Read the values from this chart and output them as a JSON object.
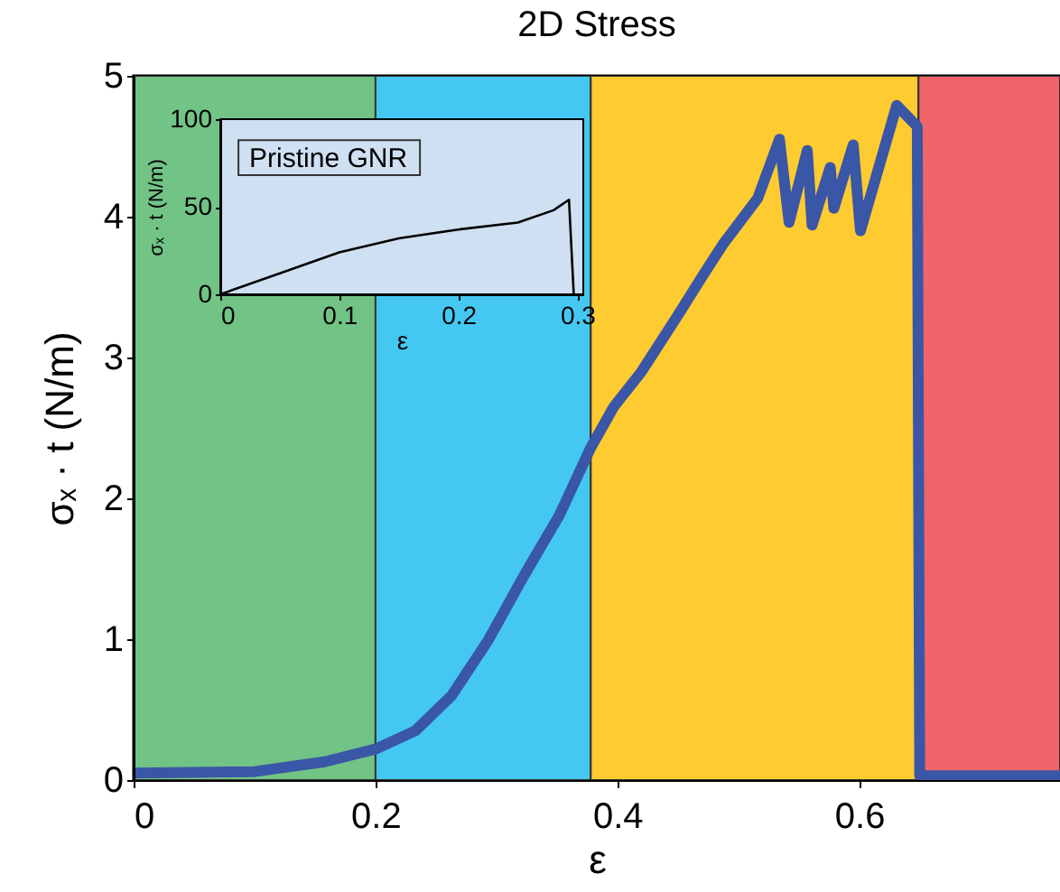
{
  "chart_data": [
    {
      "type": "line",
      "title": "2D Stress",
      "xlabel": "ε",
      "ylabel": "σₓ · t (N/m)",
      "xlim": [
        0,
        0.766
      ],
      "ylim": [
        0,
        5
      ],
      "xticks": [
        0,
        0.2,
        0.4,
        0.6
      ],
      "yticks": [
        0,
        1,
        2,
        3,
        4,
        5
      ],
      "grid": false,
      "bands": [
        {
          "axis": "x",
          "from": 0,
          "to": 0.2,
          "color": "#72c386"
        },
        {
          "axis": "x",
          "from": 0.2,
          "to": 0.378,
          "color": "#44c8f2"
        },
        {
          "axis": "x",
          "from": 0.378,
          "to": 0.649,
          "color": "#fecb30"
        },
        {
          "axis": "x",
          "from": 0.649,
          "to": 0.766,
          "color": "#f1656a"
        }
      ],
      "series": [
        {
          "color": "#3a56a6",
          "x": [
            0,
            0.1,
            0.158,
            0.2,
            0.233,
            0.263,
            0.293,
            0.322,
            0.352,
            0.378,
            0.397,
            0.42,
            0.45,
            0.472,
            0.487,
            0.516,
            0.534,
            0.542,
            0.557,
            0.561,
            0.576,
            0.579,
            0.595,
            0.601,
            0.631,
            0.648,
            0.65,
            0.766
          ],
          "values": [
            0.05,
            0.06,
            0.13,
            0.22,
            0.35,
            0.6,
            0.99,
            1.44,
            1.88,
            2.36,
            2.65,
            2.9,
            3.3,
            3.6,
            3.8,
            4.13,
            4.55,
            3.96,
            4.47,
            3.94,
            4.35,
            4.06,
            4.51,
            3.9,
            4.79,
            4.64,
            0.03,
            0.03
          ]
        }
      ]
    },
    {
      "type": "line",
      "xlabel": "ε",
      "ylabel": "σₓ · t (N/m)",
      "xlim": [
        0,
        0.305
      ],
      "ylim": [
        0,
        100
      ],
      "xticks": [
        0,
        0.1,
        0.2,
        0.3
      ],
      "yticks": [
        0,
        50,
        100
      ],
      "grid": false,
      "annotations": [
        "Pristine GNR"
      ],
      "series": [
        {
          "color": "#000000",
          "x": [
            0,
            0.05,
            0.1,
            0.15,
            0.2,
            0.25,
            0.28,
            0.293,
            0.297
          ],
          "values": [
            0,
            12,
            24,
            32,
            37,
            41,
            48,
            54,
            0
          ]
        }
      ]
    }
  ]
}
